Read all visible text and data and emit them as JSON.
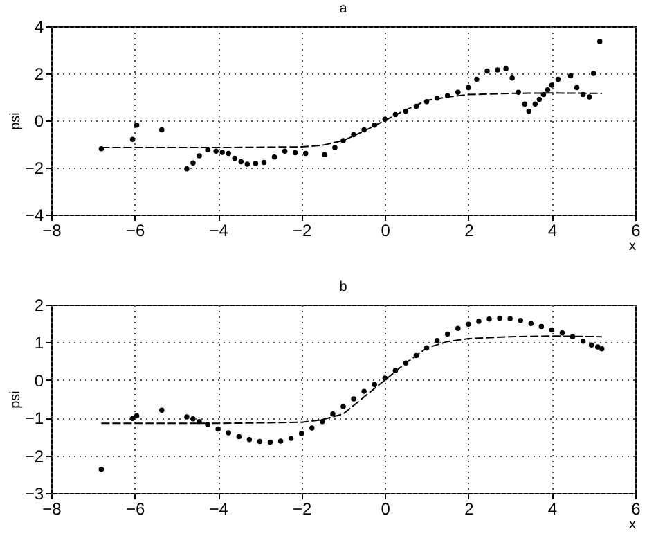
{
  "chart_data": [
    {
      "type": "scatter",
      "title": "a",
      "xlabel": "x",
      "ylabel": "psi",
      "xlim": [
        -8,
        6
      ],
      "ylim": [
        -4,
        4
      ],
      "xticks": [
        -8,
        -6,
        -4,
        -2,
        0,
        2,
        4,
        6
      ],
      "yticks": [
        -4,
        -2,
        0,
        2,
        4
      ],
      "grid": true,
      "line_style": "dashed",
      "series": [
        {
          "type": "scatter",
          "color": "#000000",
          "x": [
            -6.8,
            -6.05,
            -5.95,
            -5.35,
            -4.75,
            -4.6,
            -4.45,
            -4.25,
            -4.05,
            -3.9,
            -3.75,
            -3.6,
            -3.45,
            -3.3,
            -3.1,
            -2.9,
            -2.65,
            -2.4,
            -2.15,
            -1.9,
            -1.45,
            -1.2,
            -1.0,
            -0.75,
            -0.5,
            -0.25,
            0,
            0.25,
            0.5,
            0.75,
            1.0,
            1.25,
            1.5,
            1.75,
            2.0,
            2.2,
            2.45,
            2.7,
            2.9,
            3.05,
            3.2,
            3.35,
            3.45,
            3.6,
            3.7,
            3.8,
            3.9,
            4.0,
            4.15,
            4.45,
            4.6,
            4.75,
            4.9,
            5.0,
            5.15
          ],
          "values": [
            -1.2,
            -0.8,
            -0.2,
            -0.4,
            -2.05,
            -1.8,
            -1.5,
            -1.25,
            -1.3,
            -1.35,
            -1.4,
            -1.6,
            -1.75,
            -1.85,
            -1.82,
            -1.78,
            -1.55,
            -1.3,
            -1.37,
            -1.4,
            -1.45,
            -1.15,
            -0.85,
            -0.6,
            -0.4,
            -0.2,
            0.05,
            0.25,
            0.4,
            0.6,
            0.8,
            0.95,
            1.05,
            1.2,
            1.4,
            1.75,
            2.1,
            2.15,
            2.2,
            1.8,
            1.2,
            0.7,
            0.4,
            0.7,
            0.9,
            1.1,
            1.3,
            1.5,
            1.75,
            1.9,
            1.4,
            1.1,
            1.0,
            2.0,
            3.35
          ]
        },
        {
          "type": "line",
          "color": "#000000",
          "x": [
            -6.8,
            -4,
            -2,
            -1.5,
            -1,
            -0.5,
            0,
            0.5,
            1,
            1.5,
            2,
            3,
            4,
            5.2
          ],
          "values": [
            -1.15,
            -1.15,
            -1.12,
            -1.05,
            -0.85,
            -0.45,
            0,
            0.45,
            0.85,
            1.0,
            1.1,
            1.15,
            1.17,
            1.15
          ]
        }
      ]
    },
    {
      "type": "scatter",
      "title": "b",
      "xlabel": "x",
      "ylabel": "psi",
      "xlim": [
        -8,
        6
      ],
      "ylim": [
        -3,
        2
      ],
      "xticks": [
        -8,
        -6,
        -4,
        -2,
        0,
        2,
        4,
        6
      ],
      "yticks": [
        -3,
        -2,
        -1,
        0,
        1,
        2
      ],
      "grid": true,
      "line_style": "dashed",
      "series": [
        {
          "type": "scatter",
          "color": "#000000",
          "x": [
            -6.8,
            -6.05,
            -5.95,
            -5.35,
            -4.75,
            -4.6,
            -4.45,
            -4.25,
            -4.0,
            -3.75,
            -3.5,
            -3.25,
            -3.0,
            -2.75,
            -2.5,
            -2.25,
            -2.0,
            -1.75,
            -1.5,
            -1.25,
            -1.0,
            -0.75,
            -0.5,
            -0.25,
            0,
            0.25,
            0.5,
            0.75,
            1.0,
            1.25,
            1.5,
            1.75,
            2.0,
            2.25,
            2.5,
            2.75,
            3.0,
            3.25,
            3.5,
            3.75,
            4.0,
            4.25,
            4.5,
            4.75,
            4.95,
            5.1,
            5.2
          ],
          "values": [
            -2.37,
            -1.02,
            -0.95,
            -0.8,
            -0.98,
            -1.03,
            -1.1,
            -1.18,
            -1.3,
            -1.4,
            -1.5,
            -1.58,
            -1.63,
            -1.65,
            -1.62,
            -1.55,
            -1.42,
            -1.27,
            -1.1,
            -0.9,
            -0.7,
            -0.5,
            -0.3,
            -0.12,
            0.05,
            0.25,
            0.45,
            0.65,
            0.85,
            1.05,
            1.22,
            1.37,
            1.48,
            1.56,
            1.62,
            1.64,
            1.63,
            1.58,
            1.5,
            1.42,
            1.33,
            1.25,
            1.15,
            1.03,
            0.93,
            0.88,
            0.83
          ]
        },
        {
          "type": "line",
          "color": "#000000",
          "x": [
            -6.8,
            -4,
            -2,
            -1.5,
            -1,
            -0.5,
            0,
            0.5,
            1,
            1.5,
            2,
            3,
            4,
            5.2
          ],
          "values": [
            -1.15,
            -1.15,
            -1.12,
            -1.05,
            -0.9,
            -0.45,
            0,
            0.45,
            0.85,
            1.02,
            1.1,
            1.15,
            1.17,
            1.15
          ]
        }
      ]
    }
  ]
}
